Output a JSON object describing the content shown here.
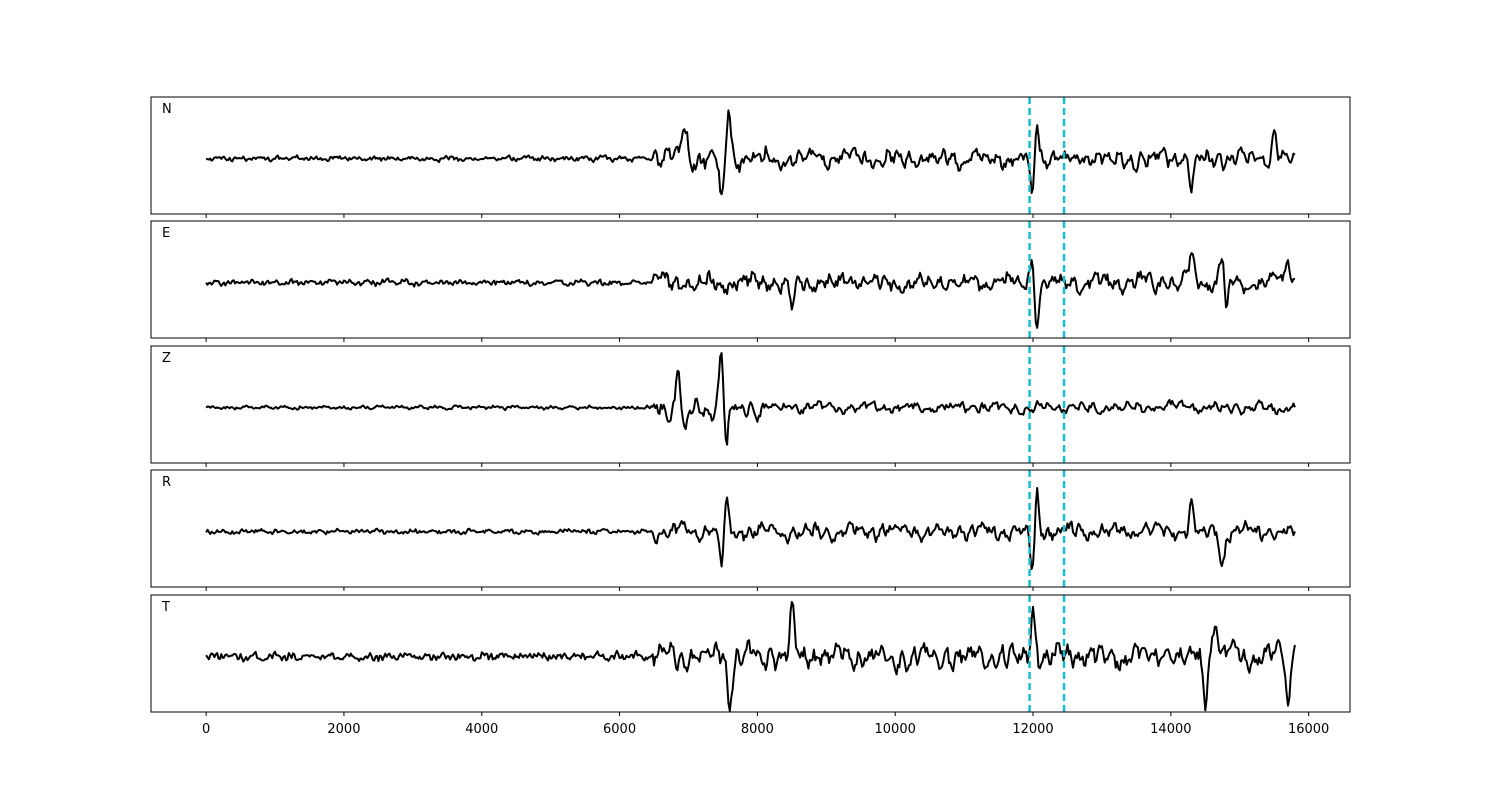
{
  "chart_data": {
    "type": "line",
    "panels": [
      {
        "name": "N"
      },
      {
        "name": "E"
      },
      {
        "name": "Z"
      },
      {
        "name": "R"
      },
      {
        "name": "T"
      }
    ],
    "x_range": [
      0,
      15800
    ],
    "xlim": [
      -800,
      16600
    ],
    "x_ticks": [
      0,
      2000,
      4000,
      6000,
      8000,
      10000,
      12000,
      14000,
      16000
    ],
    "x_tick_labels": [
      "0",
      "2000",
      "4000",
      "6000",
      "8000",
      "10000",
      "12000",
      "14000",
      "16000"
    ],
    "vertical_markers": [
      11950,
      12450
    ],
    "colors": {
      "trace": "#000000",
      "marker": "#17becf",
      "frame": "#000000"
    },
    "grid": false
  }
}
